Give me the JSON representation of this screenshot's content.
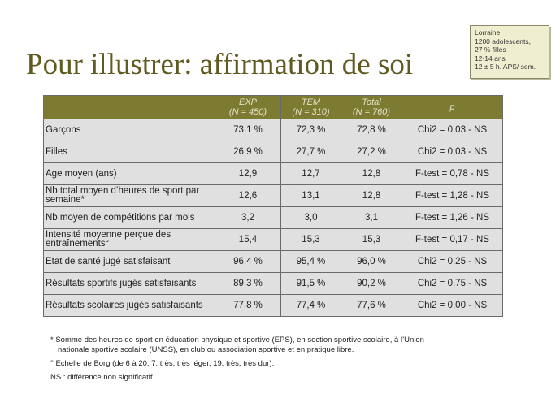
{
  "title": "Pour illustrer: affirmation de soi",
  "infobox": {
    "lines": [
      "Lorraine",
      "1200 adolescents,",
      "27 % filles",
      "12-14 ans",
      "12 ± 5 h. APS/ sem."
    ]
  },
  "table": {
    "headers": [
      {
        "line1": "",
        "line2": ""
      },
      {
        "line1": "EXP",
        "line2": "(N = 450)"
      },
      {
        "line1": "TEM",
        "line2": "(N = 310)"
      },
      {
        "line1": "Total",
        "line2": "(N = 760)"
      },
      {
        "line1": "p",
        "line2": ""
      }
    ],
    "rows": [
      {
        "label": "Garçons",
        "exp": "73,1 %",
        "tem": "72,3 %",
        "total": "72,8 %",
        "p": "Chi2 = 0,03 - NS"
      },
      {
        "label": "Filles",
        "exp": "26,9 %",
        "tem": "27,7 %",
        "total": "27,2 %",
        "p": "Chi2 = 0,03 - NS"
      },
      {
        "label": "Age moyen (ans)",
        "exp": "12,9",
        "tem": "12,7",
        "total": "12,8",
        "p": "F-test = 0,78 - NS"
      },
      {
        "label": "Nb total moyen d’heures de sport par semaine*",
        "exp": "12,6",
        "tem": "13,1",
        "total": "12,8",
        "p": "F-test = 1,28 - NS"
      },
      {
        "label": "Nb moyen de compétitions par mois",
        "exp": "3,2",
        "tem": "3,0",
        "total": "3,1",
        "p": "F-test = 1,26 - NS"
      },
      {
        "label": "Intensité moyenne perçue des entraînements°",
        "exp": "15,4",
        "tem": "15,3",
        "total": "15,3",
        "p": "F-test = 0,17 - NS"
      },
      {
        "label": "Etat de santé jugé satisfaisant",
        "exp": "96,4 %",
        "tem": "95,4 %",
        "total": "96,0 %",
        "p": "Chi2 = 0,25 - NS"
      },
      {
        "label": "Résultats sportifs jugés satisfaisants",
        "exp": "89,3 %",
        "tem": "91,5 %",
        "total": "90,2 %",
        "p": "Chi2 = 0,75 - NS"
      },
      {
        "label": "Résultats scolaires jugés satisfaisants",
        "exp": "77,8 %",
        "tem": "77,4 %",
        "total": "77,6 %",
        "p": "Chi2 = 0,00 - NS"
      }
    ]
  },
  "notes": {
    "footnote1_line1": "* Somme des heures de sport en éducation physique et sportive (EPS), en section sportive scolaire, à l’Union",
    "footnote1_line2": "nationale sportive scolaire (UNSS), en club ou association sportive et en pratique libre.",
    "footnote2": "° Echelle de Borg (de 6 à 20, 7: très, très léger, 19: très, très dur).",
    "footnote3": "NS : différence non significatif"
  }
}
